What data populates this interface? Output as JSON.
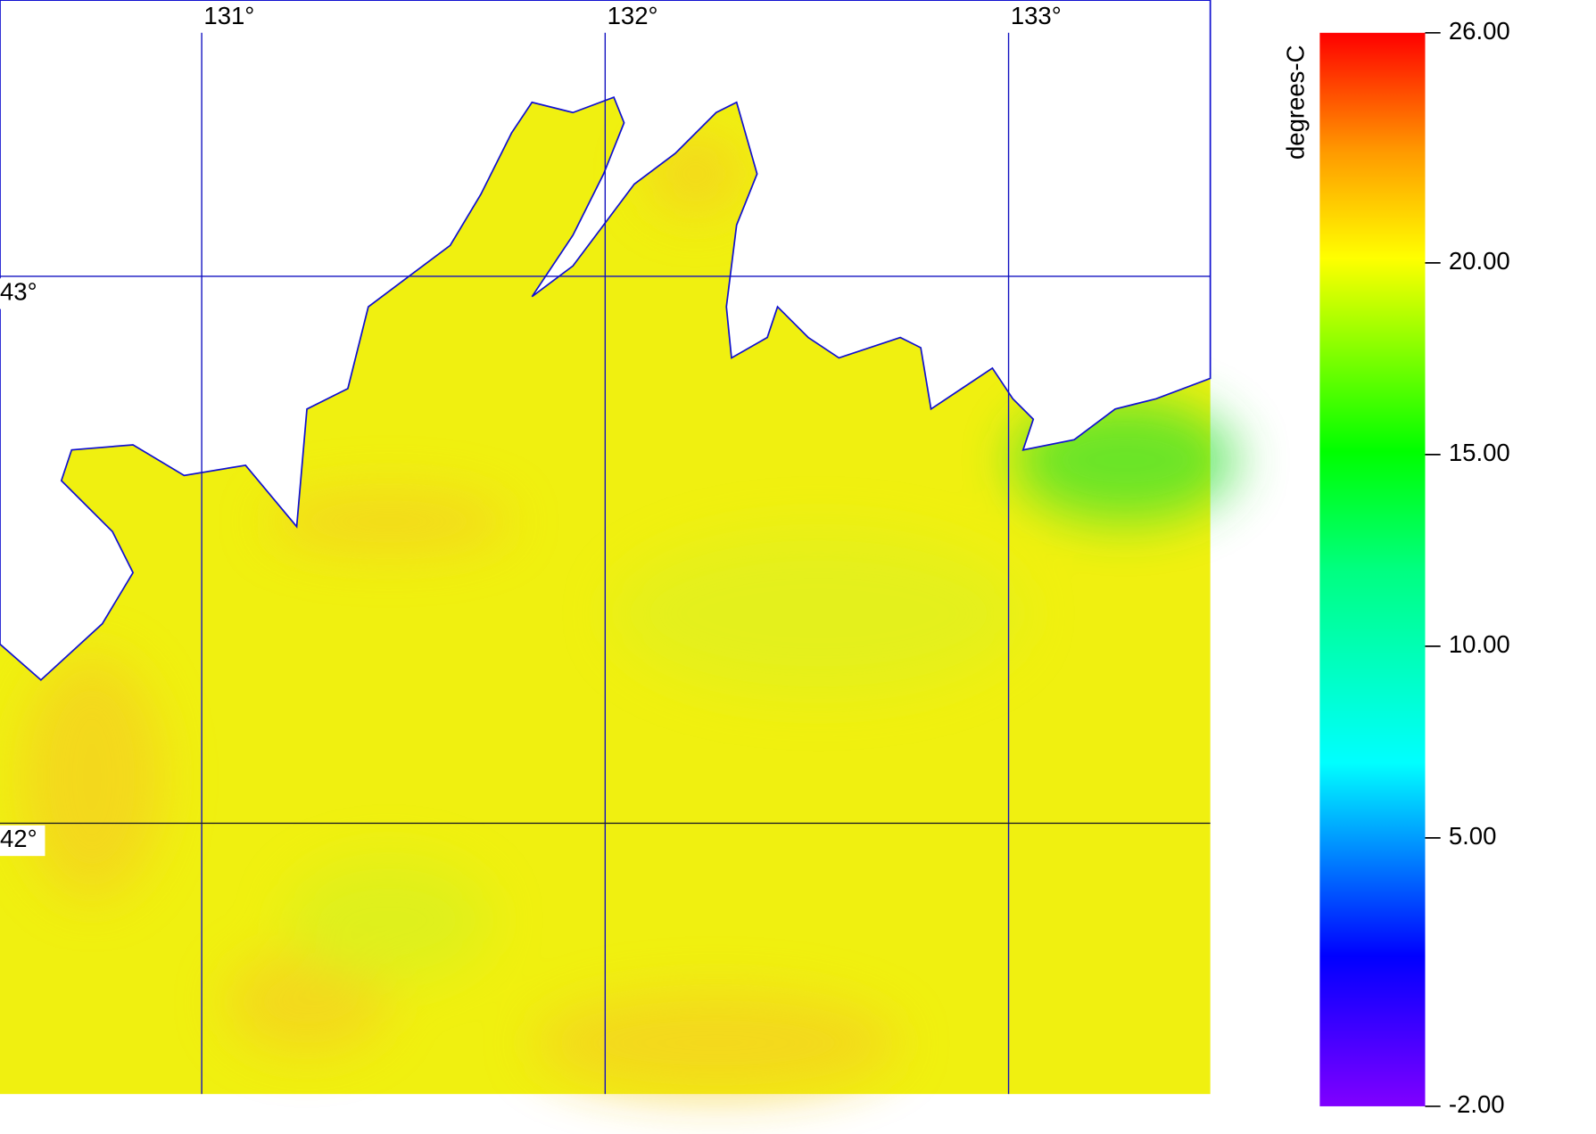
{
  "map": {
    "lonlim": [
      130.5,
      133.5
    ],
    "latlim": [
      41.505,
      43.505
    ],
    "lon_ticks": [
      {
        "value": 131,
        "label": "131°"
      },
      {
        "value": 132,
        "label": "132°"
      },
      {
        "value": 133,
        "label": "133°"
      }
    ],
    "lat_ticks": [
      {
        "value": 43,
        "label": "43°"
      },
      {
        "value": 42,
        "label": "42°"
      }
    ]
  },
  "colorbar": {
    "label": "degrees-C",
    "range": [
      -2,
      26
    ],
    "ticks": [
      {
        "value": 26,
        "label": "26.00"
      },
      {
        "value": 20,
        "label": "20.00"
      },
      {
        "value": 15,
        "label": "15.00"
      },
      {
        "value": 10,
        "label": "10.00"
      },
      {
        "value": 5,
        "label": "5.00"
      },
      {
        "value": -2,
        "label": "-2.00"
      }
    ]
  }
}
